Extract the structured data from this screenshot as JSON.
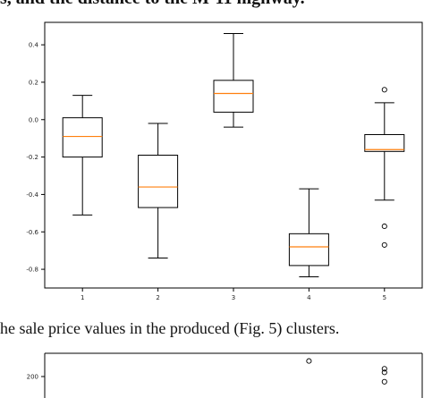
{
  "page": {
    "top_text": "s, and the distance to the M-11 highway.",
    "caption": "he sale price values in the produced (Fig. 5) clusters."
  },
  "chart_data": [
    {
      "type": "boxplot",
      "categories": [
        "1",
        "2",
        "3",
        "4",
        "5"
      ],
      "ylim": [
        -0.9,
        0.52
      ],
      "yticks": [
        0.4,
        0.2,
        0.0,
        -0.2,
        -0.4,
        -0.6,
        -0.8
      ],
      "ytick_labels": [
        "0.4",
        "0.2",
        "0.0",
        "-0.2",
        "-0.4",
        "-0.6",
        "-0.8"
      ],
      "boxes": [
        {
          "category": "1",
          "whisker_low": -0.51,
          "q1": -0.2,
          "median": -0.09,
          "q3": 0.01,
          "whisker_high": 0.13,
          "fliers": []
        },
        {
          "category": "2",
          "whisker_low": -0.74,
          "q1": -0.47,
          "median": -0.36,
          "q3": -0.19,
          "whisker_high": -0.02,
          "fliers": []
        },
        {
          "category": "3",
          "whisker_low": -0.04,
          "q1": 0.04,
          "median": 0.14,
          "q3": 0.21,
          "whisker_high": 0.46,
          "fliers": []
        },
        {
          "category": "4",
          "whisker_low": -0.84,
          "q1": -0.78,
          "median": -0.68,
          "q3": -0.61,
          "whisker_high": -0.37,
          "fliers": []
        },
        {
          "category": "5",
          "whisker_low": -0.43,
          "q1": -0.17,
          "median": -0.16,
          "q3": -0.08,
          "whisker_high": 0.09,
          "fliers": [
            0.16,
            -0.57,
            -0.67
          ]
        }
      ],
      "colors": {
        "box": "#000000",
        "median": "#ff7f0e"
      }
    },
    {
      "type": "boxplot",
      "categories": [],
      "yticks_visible": [
        "200"
      ],
      "fliers_visible": [
        {
          "category": "4",
          "values": [
            230
          ]
        },
        {
          "category": "5",
          "values": [
            215,
            208,
            190
          ]
        }
      ]
    }
  ]
}
